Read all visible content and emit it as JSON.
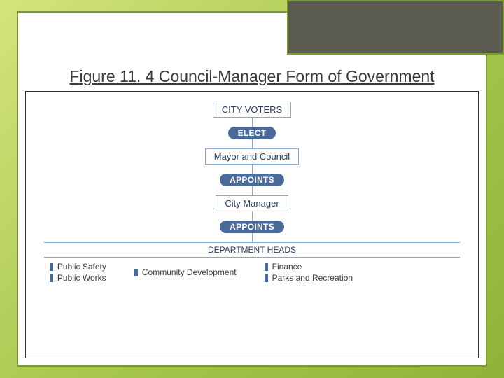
{
  "slide": {
    "title": "Figure 11. 4 Council-Manager Form of Government",
    "bg_gradient_from": "#d4e47c",
    "bg_gradient_to": "#8fb33a",
    "frame_border": "#7a9c2f",
    "accent_color": "#5b5b50"
  },
  "flowchart": {
    "box_border": "#8aa8cc",
    "pill_bg": "#4a6a99",
    "pill_text": "#ffffff",
    "text_color": "#2a3c5a",
    "connector_color": "#8aa8cc",
    "nodes": {
      "voters": "CITY VOTERS",
      "elect": "ELECT",
      "mayor": "Mayor and Council",
      "appoints1": "APPOINTS",
      "manager": "City Manager",
      "appoints2": "APPOINTS",
      "dept_head": "DEPARTMENT HEADS"
    },
    "departments": {
      "col1": [
        "Public Safety",
        "Public Works"
      ],
      "col2": [
        "Community Development"
      ],
      "col3": [
        "Finance",
        "Parks and Recreation"
      ]
    }
  }
}
